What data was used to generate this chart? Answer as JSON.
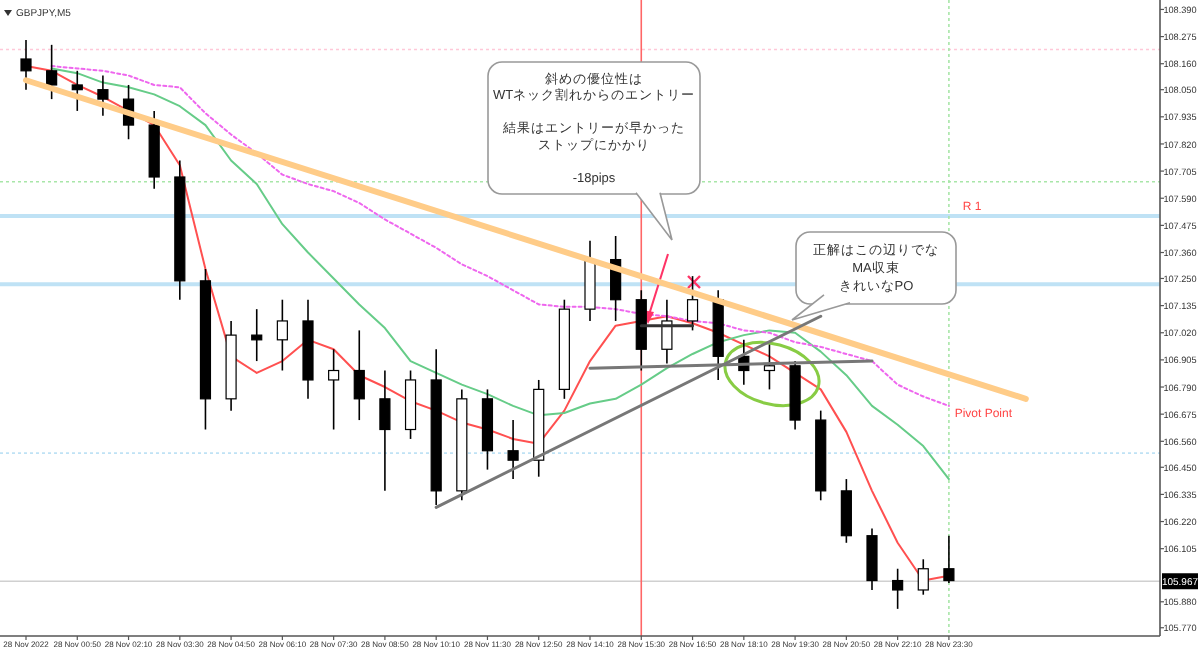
{
  "chart_data": {
    "type": "candlestick",
    "title": "GBPJPY,M5",
    "color": "#000000",
    "categories": [
      "28 Nov 2022",
      null,
      "28 Nov 00:50",
      null,
      "28 Nov 02:10",
      null,
      "28 Nov 03:30",
      null,
      "28 Nov 04:50",
      null,
      "28 Nov 06:10",
      null,
      "28 Nov 07:30",
      null,
      "28 Nov 08:50",
      null,
      "28 Nov 10:10",
      null,
      "28 Nov 11:30",
      null,
      "28 Nov 12:50",
      null,
      "28 Nov 14:10",
      null,
      "28 Nov 15:30",
      null,
      "28 Nov 16:50",
      null,
      "28 Nov 18:10",
      null,
      "28 Nov 19:30",
      null,
      "28 Nov 20:50",
      null,
      "28 Nov 22:10",
      null,
      "28 Nov 23:30",
      null,
      null,
      null,
      null,
      null,
      null,
      null,
      null
    ],
    "ohlc": [
      [
        108.18,
        108.26,
        108.05,
        108.13
      ],
      [
        108.13,
        108.24,
        108.01,
        108.07
      ],
      [
        108.07,
        108.13,
        107.96,
        108.05
      ],
      [
        108.05,
        108.11,
        107.94,
        108.01
      ],
      [
        108.01,
        108.07,
        107.84,
        107.9
      ],
      [
        107.9,
        107.96,
        107.63,
        107.68
      ],
      [
        107.68,
        107.75,
        107.16,
        107.24
      ],
      [
        107.24,
        107.29,
        106.61,
        106.74
      ],
      [
        106.74,
        107.07,
        106.69,
        107.01
      ],
      [
        107.01,
        107.12,
        106.9,
        106.99
      ],
      [
        106.99,
        107.16,
        106.86,
        107.07
      ],
      [
        107.07,
        107.16,
        106.74,
        106.82
      ],
      [
        106.82,
        106.95,
        106.61,
        106.86
      ],
      [
        106.86,
        107.03,
        106.65,
        106.74
      ],
      [
        106.74,
        106.86,
        106.35,
        106.61
      ],
      [
        106.61,
        106.86,
        106.57,
        106.82
      ],
      [
        106.82,
        106.95,
        106.29,
        106.35
      ],
      [
        106.35,
        106.78,
        106.31,
        106.74
      ],
      [
        106.74,
        106.78,
        106.44,
        106.52
      ],
      [
        106.52,
        106.65,
        106.4,
        106.48
      ],
      [
        106.48,
        106.82,
        106.41,
        106.78
      ],
      [
        106.78,
        107.16,
        106.74,
        107.12
      ],
      [
        107.12,
        107.41,
        107.07,
        107.33
      ],
      [
        107.33,
        107.43,
        107.07,
        107.16
      ],
      [
        107.16,
        107.2,
        106.86,
        106.95
      ],
      [
        106.95,
        107.16,
        106.89,
        107.07
      ],
      [
        107.07,
        107.26,
        107.03,
        107.16
      ],
      [
        107.16,
        107.2,
        106.82,
        106.92
      ],
      [
        106.92,
        106.99,
        106.8,
        106.86
      ],
      [
        106.86,
        106.97,
        106.78,
        106.88
      ],
      [
        106.88,
        106.9,
        106.61,
        106.65
      ],
      [
        106.65,
        106.69,
        106.31,
        106.35
      ],
      [
        106.35,
        106.4,
        106.13,
        106.16
      ],
      [
        106.16,
        106.19,
        105.93,
        105.97
      ],
      [
        105.97,
        106.02,
        105.85,
        105.93
      ],
      [
        105.93,
        106.06,
        105.91,
        106.02
      ],
      [
        106.02,
        106.16,
        105.96,
        105.97
      ],
      null,
      null,
      null,
      null,
      null,
      null,
      null,
      null
    ],
    "series": [
      {
        "type": "line",
        "color": "#ff5050",
        "values": [
          108.15,
          108.13,
          108.07,
          108.02,
          107.96,
          107.9,
          107.73,
          107.29,
          106.92,
          106.85,
          106.9,
          106.99,
          106.95,
          106.84,
          106.79,
          106.73,
          106.69,
          106.64,
          106.61,
          106.57,
          106.55,
          106.69,
          106.9,
          107.05,
          107.07,
          107.09,
          107.06,
          107.02,
          106.97,
          106.92,
          106.85,
          106.78,
          106.6,
          106.35,
          106.13,
          105.97,
          105.99,
          null,
          null,
          null,
          null,
          null,
          null,
          null,
          null
        ]
      },
      {
        "type": "line",
        "color": "#66cc88",
        "values": [
          null,
          108.14,
          108.12,
          108.08,
          108.06,
          108.03,
          107.98,
          107.9,
          107.75,
          107.65,
          107.48,
          107.36,
          107.25,
          107.14,
          107.04,
          106.9,
          106.85,
          106.8,
          106.76,
          106.71,
          106.67,
          106.68,
          106.72,
          106.74,
          106.8,
          106.87,
          106.93,
          106.98,
          107.01,
          107.03,
          107.02,
          106.94,
          106.84,
          106.71,
          106.63,
          106.54,
          106.4,
          null,
          null,
          null,
          null,
          null,
          null,
          null,
          null
        ]
      },
      {
        "type": "line",
        "color": "#ee66ee",
        "line_style": "dotted",
        "values": [
          null,
          108.15,
          108.14,
          108.13,
          108.11,
          108.07,
          108.06,
          107.95,
          107.86,
          107.78,
          107.69,
          107.65,
          107.62,
          107.57,
          107.5,
          107.44,
          107.38,
          107.31,
          107.26,
          107.2,
          107.14,
          107.13,
          107.13,
          107.12,
          107.1,
          107.09,
          107.07,
          107.06,
          107.03,
          107.02,
          106.98,
          106.96,
          106.93,
          106.9,
          106.8,
          106.75,
          106.71,
          null,
          null,
          null,
          null,
          null,
          null,
          null,
          null
        ]
      },
      {
        "type": "line",
        "color": "#ffcc88",
        "values": [
          108.09,
          null,
          null,
          null,
          null,
          null,
          null,
          null,
          null,
          null,
          null,
          null,
          null,
          null,
          null,
          null,
          null,
          null,
          null,
          null,
          null,
          null,
          null,
          null,
          null,
          null,
          null,
          null,
          null,
          null,
          null,
          null,
          null,
          null,
          null,
          null,
          null,
          null,
          null,
          106.74,
          null,
          null,
          null,
          null,
          null
        ]
      },
      {
        "type": "line",
        "color": "#777777",
        "values": [
          null,
          null,
          null,
          null,
          null,
          null,
          null,
          null,
          null,
          null,
          null,
          null,
          null,
          null,
          null,
          null,
          106.28,
          null,
          null,
          null,
          null,
          null,
          null,
          null,
          null,
          null,
          null,
          null,
          null,
          null,
          null,
          107.09,
          null,
          null,
          null,
          null,
          null,
          null,
          null,
          null,
          null,
          null,
          null,
          null,
          null
        ]
      },
      {
        "type": "line",
        "color": "#777777",
        "values": [
          null,
          null,
          null,
          null,
          null,
          null,
          null,
          null,
          null,
          null,
          null,
          null,
          null,
          null,
          null,
          null,
          null,
          null,
          null,
          null,
          null,
          null,
          106.87,
          null,
          null,
          null,
          null,
          null,
          null,
          null,
          null,
          null,
          null,
          106.9,
          null,
          null,
          null,
          null,
          null,
          null,
          null,
          null,
          null,
          null,
          null
        ]
      },
      {
        "type": "line",
        "color": "#333333",
        "values": [
          null,
          null,
          null,
          null,
          null,
          null,
          null,
          null,
          null,
          null,
          null,
          null,
          null,
          null,
          null,
          null,
          null,
          null,
          null,
          null,
          null,
          null,
          null,
          null,
          107.05,
          null,
          107.05,
          null,
          null,
          null,
          null,
          null,
          null,
          null,
          null,
          null,
          null,
          null,
          null,
          null,
          null,
          null,
          null,
          null,
          null
        ]
      }
    ],
    "ylim": [
      105.735,
      108.43
    ],
    "yticks": [
      {
        "value": 108.39,
        "label": "108.390"
      },
      {
        "value": 108.275,
        "label": "108.275"
      },
      {
        "value": 108.16,
        "label": "108.160"
      },
      {
        "value": 108.05,
        "label": "108.050"
      },
      {
        "value": 107.935,
        "label": "107.935"
      },
      {
        "value": 107.82,
        "label": "107.820"
      },
      {
        "value": 107.705,
        "label": "107.705"
      },
      {
        "value": 107.59,
        "label": "107.590"
      },
      {
        "value": 107.475,
        "label": "107.475"
      },
      {
        "value": 107.36,
        "label": "107.360"
      },
      {
        "value": 107.25,
        "label": "107.250"
      },
      {
        "value": 107.135,
        "label": "107.135"
      },
      {
        "value": 107.02,
        "label": "107.020"
      },
      {
        "value": 106.905,
        "label": "106.905"
      },
      {
        "value": 106.79,
        "label": "106.790"
      },
      {
        "value": 106.675,
        "label": "106.675"
      },
      {
        "value": 106.56,
        "label": "106.560"
      },
      {
        "value": 106.45,
        "label": "106.450"
      },
      {
        "value": 106.335,
        "label": "106.335"
      },
      {
        "value": 106.22,
        "label": "106.220"
      },
      {
        "value": 106.105,
        "label": "106.105"
      },
      {
        "value": 105.88,
        "label": "105.880"
      },
      {
        "value": 105.77,
        "label": "105.770"
      }
    ],
    "grid": false,
    "ref_lines": [
      {
        "axis": "y",
        "value": 108.22,
        "color": "#ffc8d8",
        "line_style": "dotted"
      },
      {
        "axis": "y",
        "value": 107.66,
        "color": "#a8e6a8",
        "line_style": "dotted"
      },
      {
        "axis": "y",
        "value": 107.515,
        "label": "R 1",
        "color": "#bfe2f5"
      },
      {
        "axis": "y",
        "value": 107.226,
        "color": "#bfe2f5"
      },
      {
        "axis": "y",
        "value": 106.51,
        "color": "#bfe2f5",
        "line_style": "dotted"
      },
      {
        "axis": "y",
        "value": 105.967,
        "label": "105.967",
        "color": "#d0d0d0"
      },
      {
        "axis": "x",
        "value": "28 Nov 15:30",
        "color": "#ff6666"
      },
      {
        "axis": "x",
        "value": "28 Nov 23:30",
        "color": "#a8e6a8",
        "line_style": "dotted"
      }
    ],
    "annotations": [
      "斜めの優位性は",
      "WTネック割れからのエントリー",
      "結果はエントリーが早かった",
      "ストップにかかり",
      "-18pips",
      "正解はこの辺りでな",
      "MA収束",
      "きれいなPO",
      "Pivot Point"
    ]
  }
}
